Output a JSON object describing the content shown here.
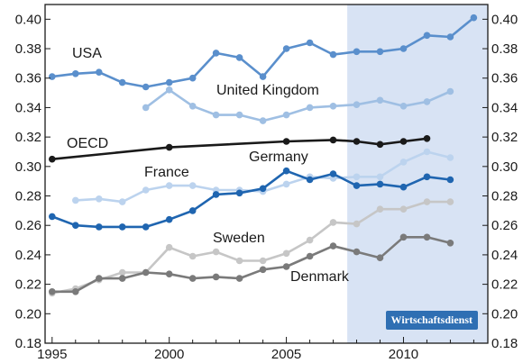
{
  "chart_data": {
    "type": "line",
    "title": "",
    "xlabel": "",
    "ylabel": "",
    "xlim": [
      1994.7,
      2013.6
    ],
    "ylim": [
      0.18,
      0.41
    ],
    "grid": false,
    "forecast_shade_start": 2007.6,
    "x_ticks": [
      "1995",
      "2000",
      "2005",
      "2010"
    ],
    "y_ticks": [
      "0.18",
      "0.20",
      "0.22",
      "0.24",
      "0.26",
      "0.28",
      "0.30",
      "0.32",
      "0.34",
      "0.36",
      "0.38",
      "0.40"
    ],
    "series": [
      {
        "name": "USA",
        "color": "#5a8fcc",
        "x": [
          1995,
          1996,
          1997,
          1998,
          1999,
          2000,
          2001,
          2002,
          2003,
          2004,
          2005,
          2006,
          2007,
          2008,
          2009,
          2010,
          2011,
          2012,
          2013
        ],
        "y": [
          0.361,
          0.363,
          0.364,
          0.357,
          0.354,
          0.357,
          0.36,
          0.377,
          0.374,
          0.361,
          0.38,
          0.384,
          0.376,
          0.378,
          0.378,
          0.38,
          0.389,
          0.388,
          0.401
        ]
      },
      {
        "name": "United Kingdom",
        "color": "#9fbfe3",
        "x": [
          1999,
          2000,
          2001,
          2002,
          2003,
          2004,
          2005,
          2006,
          2007,
          2008,
          2009,
          2010,
          2011,
          2012
        ],
        "y": [
          0.34,
          0.352,
          0.341,
          0.335,
          0.335,
          0.331,
          0.335,
          0.34,
          0.341,
          0.342,
          0.345,
          0.341,
          0.344,
          0.351
        ]
      },
      {
        "name": "OECD",
        "color": "#1a1a1a",
        "x": [
          1995,
          2000,
          2005,
          2007,
          2008,
          2009,
          2010,
          2011
        ],
        "y": [
          0.305,
          0.313,
          0.317,
          0.318,
          0.317,
          0.315,
          0.317,
          0.319
        ]
      },
      {
        "name": "France",
        "color": "#bcd3ee",
        "x": [
          1996,
          1997,
          1998,
          1999,
          2000,
          2001,
          2002,
          2003,
          2004,
          2005,
          2006,
          2007,
          2008,
          2009,
          2010,
          2011,
          2012
        ],
        "y": [
          0.277,
          0.278,
          0.276,
          0.284,
          0.287,
          0.287,
          0.284,
          0.284,
          0.283,
          0.288,
          0.293,
          0.292,
          0.293,
          0.293,
          0.303,
          0.31,
          0.306
        ]
      },
      {
        "name": "Germany",
        "color": "#1f65b0",
        "x": [
          1995,
          1996,
          1997,
          1998,
          1999,
          2000,
          2001,
          2002,
          2003,
          2004,
          2005,
          2006,
          2007,
          2008,
          2009,
          2010,
          2011,
          2012
        ],
        "y": [
          0.266,
          0.26,
          0.259,
          0.259,
          0.259,
          0.264,
          0.27,
          0.281,
          0.282,
          0.285,
          0.297,
          0.291,
          0.295,
          0.287,
          0.288,
          0.286,
          0.293,
          0.291
        ]
      },
      {
        "name": "Sweden",
        "color": "#c6c6c6",
        "x": [
          1995,
          1996,
          1997,
          1998,
          1999,
          2000,
          2001,
          2002,
          2003,
          2004,
          2005,
          2006,
          2007,
          2008,
          2009,
          2010,
          2011,
          2012
        ],
        "y": [
          0.214,
          0.217,
          0.223,
          0.228,
          0.228,
          0.245,
          0.239,
          0.242,
          0.236,
          0.236,
          0.241,
          0.25,
          0.262,
          0.261,
          0.271,
          0.271,
          0.276,
          0.276
        ]
      },
      {
        "name": "Denmark",
        "color": "#7a7a7a",
        "x": [
          1995,
          1996,
          1997,
          1998,
          1999,
          2000,
          2001,
          2002,
          2003,
          2004,
          2005,
          2006,
          2007,
          2008,
          2009,
          2010,
          2011,
          2012
        ],
        "y": [
          0.215,
          0.215,
          0.224,
          0.224,
          0.228,
          0.227,
          0.224,
          0.225,
          0.224,
          0.23,
          0.232,
          0.239,
          0.246,
          0.242,
          0.238,
          0.252,
          0.252,
          0.248
        ]
      }
    ],
    "series_labels": [
      "USA",
      "United Kingdom",
      "OECD",
      "France",
      "Germany",
      "Sweden",
      "Denmark"
    ]
  },
  "badge": {
    "label": "Wirtschaftsdienst"
  }
}
